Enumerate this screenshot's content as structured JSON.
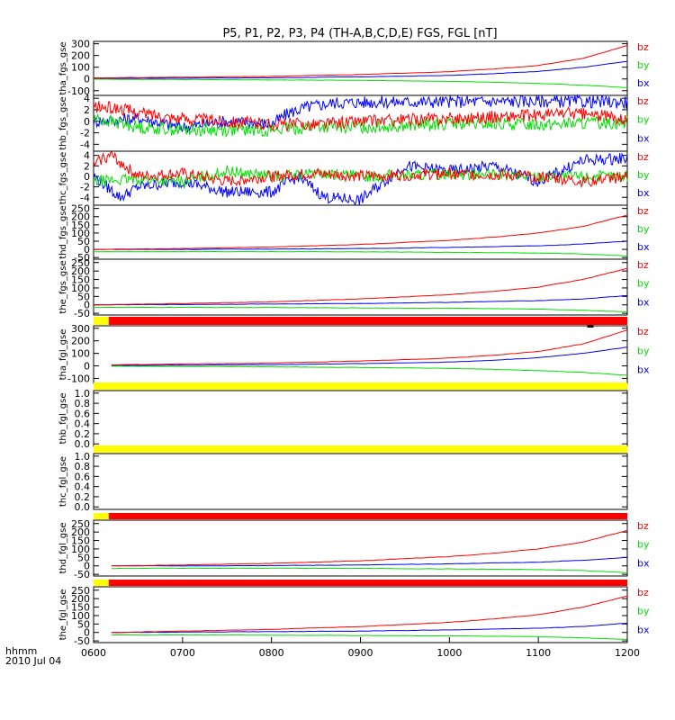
{
  "title": "P5, P1, P2, P3, P4 (TH-A,B,C,D,E) FGS, FGL [nT]",
  "time_axis": {
    "label_line1": "hhmm",
    "label_line2": "2010 Jul 04",
    "ticks": [
      "0600",
      "0700",
      "0800",
      "0900",
      "1000",
      "1100",
      "1200"
    ],
    "range_hours": [
      6,
      12
    ]
  },
  "colors": {
    "bx": "#0000ff",
    "by": "#00e000",
    "bz": "#ff0000",
    "flag_yellow": "#ffff00",
    "flag_red": "#ff0000",
    "flag_black": "#000000"
  },
  "legend_labels": [
    "bz",
    "by",
    "bx"
  ],
  "chart_data": [
    {
      "type": "line",
      "ylabel": "tha_fgs_gse",
      "ylim": [
        -140,
        320
      ],
      "yticks": [
        "300",
        "200",
        "100",
        "0",
        "-100"
      ],
      "series": [
        {
          "name": "bx",
          "x": [
            6,
            7,
            8,
            9,
            10,
            10.5,
            11,
            11.5,
            12
          ],
          "values": [
            5,
            7,
            10,
            18,
            30,
            45,
            65,
            100,
            150
          ]
        },
        {
          "name": "by",
          "x": [
            6,
            7,
            8,
            9,
            10,
            10.5,
            11,
            11.5,
            12
          ],
          "values": [
            -2,
            -5,
            -8,
            -12,
            -20,
            -28,
            -38,
            -52,
            -75
          ]
        },
        {
          "name": "bz",
          "x": [
            6,
            7,
            8,
            9,
            10,
            10.5,
            11,
            11.5,
            12
          ],
          "values": [
            10,
            15,
            22,
            38,
            62,
            85,
            115,
            175,
            285
          ]
        }
      ]
    },
    {
      "type": "line",
      "ylabel": "thb_fgs_gse",
      "ylim": [
        -5.2,
        4.5
      ],
      "yticks": [
        "4",
        "2",
        "0",
        "-2",
        "-4"
      ],
      "series": [
        {
          "name": "bx",
          "x": [
            6,
            6.5,
            7,
            7.5,
            8,
            8.2,
            8.4,
            8.7,
            9,
            10,
            11,
            12
          ],
          "values": [
            0,
            0.5,
            -1,
            0,
            -0.5,
            1.5,
            2.5,
            3.2,
            3.3,
            3.4,
            3.5,
            3.3
          ]
        },
        {
          "name": "by",
          "x": [
            6,
            6.5,
            7,
            7.5,
            8,
            8.5,
            9,
            10,
            11,
            12
          ],
          "values": [
            0.5,
            -1,
            -1.5,
            -1.5,
            -1.5,
            -1,
            -1,
            -0.5,
            -0.5,
            -0.2
          ]
        },
        {
          "name": "bz",
          "x": [
            6,
            6.3,
            6.5,
            7,
            7.5,
            8,
            8.5,
            9,
            10,
            11,
            11.3,
            12
          ],
          "values": [
            2.5,
            2.2,
            1.5,
            0.5,
            0,
            -0.5,
            -0.5,
            0,
            0.5,
            1,
            1.5,
            0.5
          ]
        }
      ]
    },
    {
      "type": "line",
      "ylabel": "thc_fgs_gse",
      "ylim": [
        -5.5,
        4.8
      ],
      "yticks": [
        "4",
        "2",
        "0",
        "-2",
        "-4"
      ],
      "series": [
        {
          "name": "bx",
          "x": [
            6,
            6.3,
            6.5,
            7,
            7.5,
            8,
            8.3,
            8.6,
            9,
            9.5,
            10,
            10.5,
            11,
            11.5,
            12
          ],
          "values": [
            0,
            -4,
            -2,
            -1,
            -3,
            -3,
            0,
            -4,
            -4.5,
            2,
            1,
            2,
            -1,
            3,
            3.5
          ]
        },
        {
          "name": "by",
          "x": [
            6,
            6.5,
            7,
            7.5,
            8,
            8.5,
            9,
            10,
            11,
            12
          ],
          "values": [
            -1,
            -0.5,
            -1,
            1,
            0,
            0.5,
            0,
            0.5,
            0,
            0
          ]
        },
        {
          "name": "bz",
          "x": [
            6,
            6.1,
            6.2,
            6.5,
            7,
            7.5,
            8,
            8.5,
            9,
            10,
            11,
            11.5,
            12
          ],
          "values": [
            2,
            3.5,
            4,
            0,
            0.5,
            -1,
            0,
            0.5,
            0,
            0.5,
            0,
            -1,
            0
          ]
        }
      ]
    },
    {
      "type": "line",
      "ylabel": "thd_fgs_gse",
      "ylim": [
        -60,
        270
      ],
      "yticks": [
        "250",
        "200",
        "150",
        "100",
        "50",
        "0",
        "-50"
      ],
      "series": [
        {
          "name": "bx",
          "x": [
            6,
            7,
            8,
            9,
            10,
            11,
            11.5,
            12
          ],
          "values": [
            0,
            0,
            2,
            5,
            12,
            22,
            33,
            50
          ]
        },
        {
          "name": "by",
          "x": [
            6,
            7,
            8,
            9,
            10,
            11,
            11.5,
            12
          ],
          "values": [
            -15,
            -14,
            -14,
            -15,
            -18,
            -22,
            -28,
            -40
          ]
        },
        {
          "name": "bz",
          "x": [
            6,
            7,
            8,
            9,
            10,
            10.5,
            11,
            11.5,
            12
          ],
          "values": [
            0,
            5,
            15,
            30,
            55,
            75,
            100,
            140,
            210
          ]
        }
      ]
    },
    {
      "type": "line",
      "ylabel": "the_fgs_gse",
      "ylim": [
        -60,
        270
      ],
      "yticks": [
        "250",
        "200",
        "150",
        "100",
        "50",
        "0",
        "-50"
      ],
      "series": [
        {
          "name": "bx",
          "x": [
            6,
            7,
            8,
            9,
            10,
            11,
            11.5,
            12
          ],
          "values": [
            0,
            2,
            5,
            8,
            15,
            25,
            35,
            55
          ]
        },
        {
          "name": "by",
          "x": [
            6,
            7,
            8,
            9,
            10,
            11,
            11.5,
            12
          ],
          "values": [
            -15,
            -15,
            -16,
            -18,
            -20,
            -25,
            -32,
            -42
          ]
        },
        {
          "name": "bz",
          "x": [
            6,
            7,
            8,
            9,
            10,
            10.5,
            11,
            11.5,
            12
          ],
          "values": [
            0,
            8,
            18,
            35,
            60,
            80,
            105,
            150,
            215
          ]
        }
      ]
    },
    {
      "type": "line",
      "ylabel": "tha_fgl_gse",
      "ylim": [
        -140,
        320
      ],
      "yticks": [
        "300",
        "200",
        "100",
        "0",
        "-100"
      ],
      "series": [
        {
          "name": "bx",
          "x": [
            6.2,
            7,
            8,
            9,
            10,
            10.5,
            11,
            11.5,
            12
          ],
          "values": [
            3,
            6,
            10,
            18,
            30,
            45,
            65,
            100,
            150
          ]
        },
        {
          "name": "by",
          "x": [
            6.2,
            7,
            8,
            9,
            10,
            10.5,
            11,
            11.5,
            12
          ],
          "values": [
            -2,
            -5,
            -8,
            -12,
            -20,
            -28,
            -38,
            -52,
            -75
          ]
        },
        {
          "name": "bz",
          "x": [
            6.2,
            7,
            8,
            9,
            10,
            10.5,
            11,
            11.5,
            12
          ],
          "values": [
            8,
            15,
            22,
            38,
            62,
            85,
            115,
            175,
            285
          ]
        }
      ]
    },
    {
      "type": "line",
      "ylabel": "thb_fgl_gse",
      "ylim": [
        -0.05,
        1.05
      ],
      "yticks": [
        "1.0",
        "0.8",
        "0.6",
        "0.4",
        "0.2",
        "0.0"
      ],
      "series": []
    },
    {
      "type": "line",
      "ylabel": "thc_fgl_gse",
      "ylim": [
        -0.05,
        1.05
      ],
      "yticks": [
        "1.0",
        "0.8",
        "0.6",
        "0.4",
        "0.2",
        "0.0"
      ],
      "series": []
    },
    {
      "type": "line",
      "ylabel": "thd_fgl_gse",
      "ylim": [
        -60,
        270
      ],
      "yticks": [
        "250",
        "200",
        "150",
        "100",
        "50",
        "0",
        "-50"
      ],
      "series": [
        {
          "name": "bx",
          "x": [
            6.2,
            7,
            8,
            9,
            10,
            11,
            11.5,
            12
          ],
          "values": [
            0,
            0,
            2,
            5,
            12,
            22,
            33,
            50
          ]
        },
        {
          "name": "by",
          "x": [
            6.2,
            7,
            8,
            9,
            10,
            11,
            11.5,
            12
          ],
          "values": [
            -15,
            -14,
            -14,
            -15,
            -18,
            -22,
            -28,
            -40
          ]
        },
        {
          "name": "bz",
          "x": [
            6.2,
            7,
            8,
            9,
            10,
            10.5,
            11,
            11.5,
            12
          ],
          "values": [
            0,
            5,
            15,
            30,
            55,
            75,
            100,
            140,
            210
          ]
        }
      ]
    },
    {
      "type": "line",
      "ylabel": "the_fgl_gse",
      "ylim": [
        -60,
        270
      ],
      "yticks": [
        "250",
        "200",
        "150",
        "100",
        "50",
        "0",
        "-50"
      ],
      "series": [
        {
          "name": "bx",
          "x": [
            6.2,
            7,
            8,
            9,
            10,
            11,
            11.5,
            12
          ],
          "values": [
            0,
            2,
            5,
            8,
            15,
            25,
            35,
            55
          ]
        },
        {
          "name": "by",
          "x": [
            6.2,
            7,
            8,
            9,
            10,
            11,
            11.5,
            12
          ],
          "values": [
            -15,
            -15,
            -16,
            -18,
            -20,
            -25,
            -32,
            -42
          ]
        },
        {
          "name": "bz",
          "x": [
            6.2,
            7,
            8,
            9,
            10,
            10.5,
            11,
            11.5,
            12
          ],
          "values": [
            0,
            8,
            18,
            35,
            60,
            80,
            105,
            150,
            215
          ]
        }
      ]
    }
  ],
  "flag_bars": [
    {
      "segments": [
        {
          "from": 6,
          "to": 6.17,
          "color": "yellow"
        },
        {
          "from": 6.17,
          "to": 12,
          "color": "red"
        }
      ],
      "extra": [
        {
          "from": 11.55,
          "to": 11.62,
          "color": "black"
        }
      ]
    },
    {
      "segments": [
        {
          "from": 6,
          "to": 12,
          "color": "yellow"
        }
      ]
    },
    {
      "segments": [
        {
          "from": 6,
          "to": 12,
          "color": "yellow"
        }
      ]
    },
    {
      "segments": [
        {
          "from": 6,
          "to": 6.17,
          "color": "yellow"
        },
        {
          "from": 6.17,
          "to": 12,
          "color": "red"
        }
      ]
    },
    {
      "segments": [
        {
          "from": 6,
          "to": 6.17,
          "color": "yellow"
        },
        {
          "from": 6.17,
          "to": 12,
          "color": "red"
        }
      ]
    }
  ]
}
